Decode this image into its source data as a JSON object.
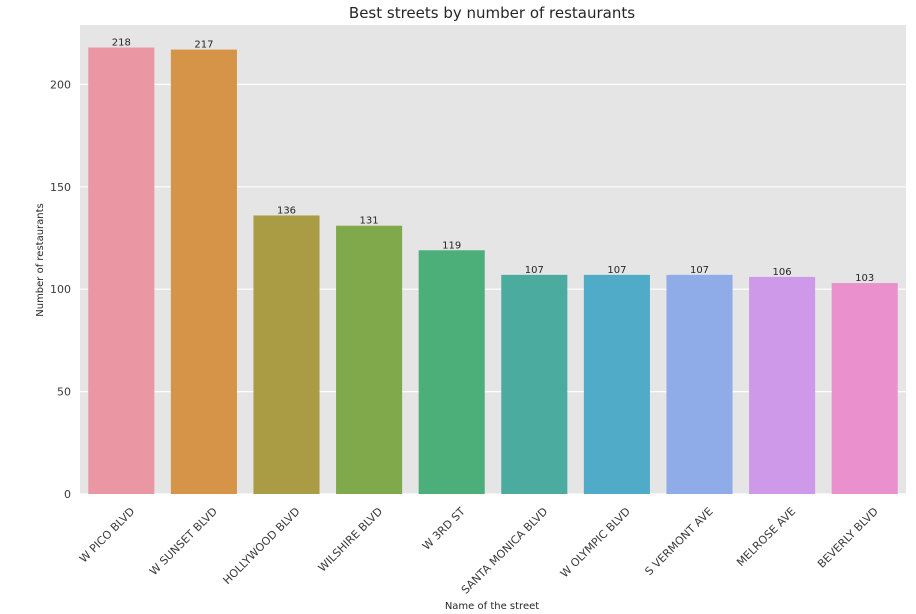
{
  "chart_data": {
    "type": "bar",
    "title": "Best streets by number of restaurants",
    "xlabel": "Name of the street",
    "ylabel": "Number of restaurants",
    "categories": [
      "W PICO BLVD",
      "W SUNSET BLVD",
      "HOLLYWOOD BLVD",
      "WILSHIRE BLVD",
      "W 3RD ST",
      "SANTA MONICA BLVD",
      "W OLYMPIC BLVD",
      "S VERMONT AVE",
      "MELROSE AVE",
      "BEVERLY BLVD"
    ],
    "values": [
      218,
      217,
      136,
      131,
      119,
      107,
      107,
      107,
      106,
      103
    ],
    "data_labels": [
      "218",
      "217",
      "136",
      "131",
      "119",
      "107",
      "107",
      "107",
      "106",
      "103"
    ],
    "colors": [
      "#ea96a3",
      "#d59448",
      "#aa9c45",
      "#7fa94a",
      "#4caf7a",
      "#4cab9f",
      "#4fabc7",
      "#8fabe8",
      "#cd99e8",
      "#e990cd"
    ],
    "ylim": [
      0,
      229
    ],
    "yticks": [
      0,
      50,
      100,
      150,
      200
    ],
    "grid": true,
    "background": "#e5e5e5"
  }
}
